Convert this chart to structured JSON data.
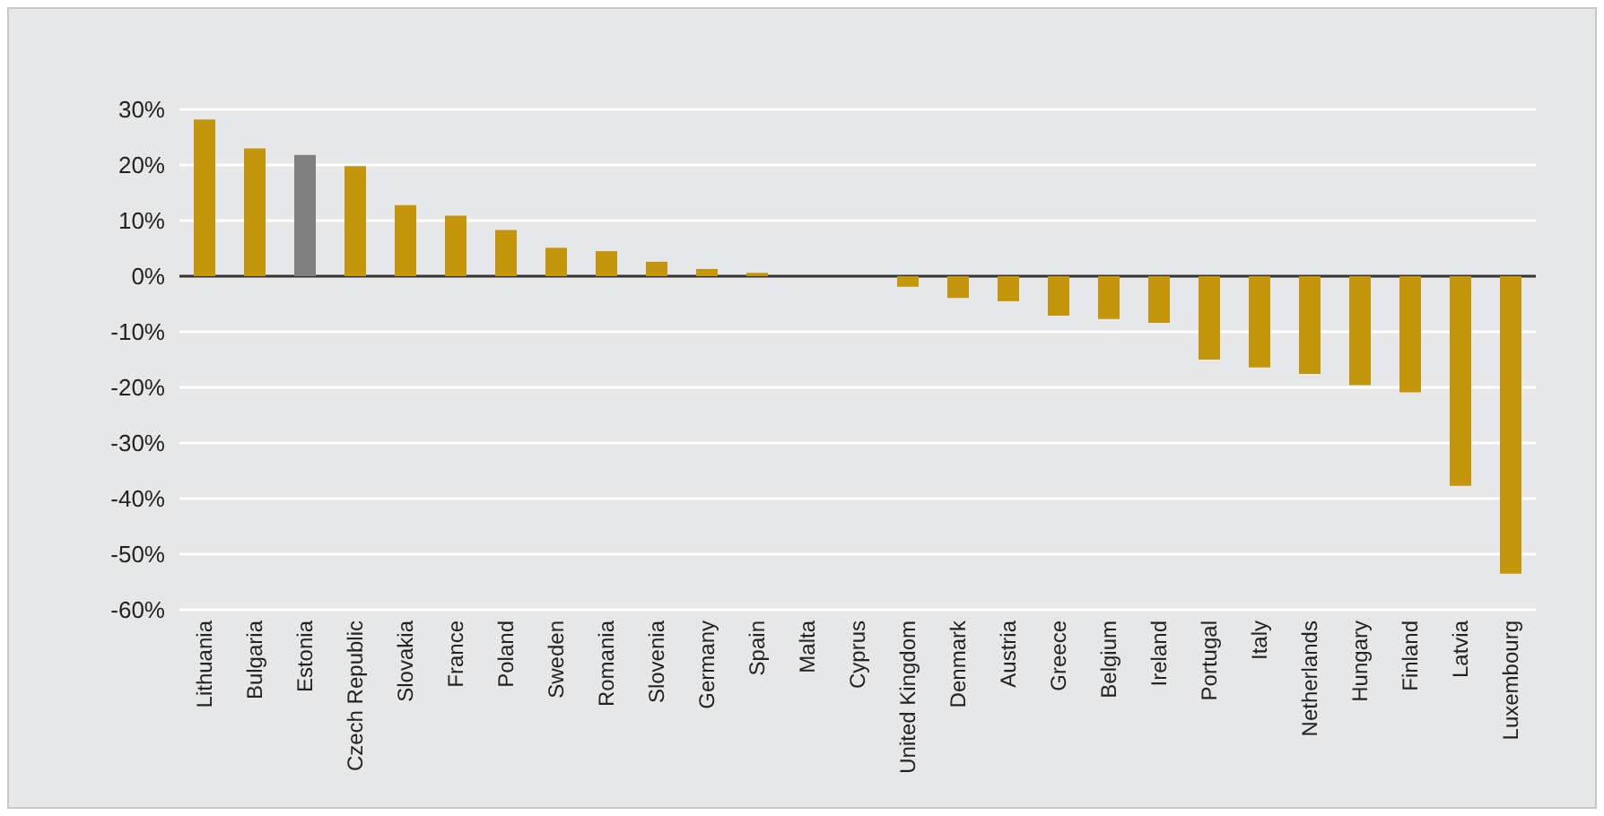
{
  "chart_data": {
    "type": "bar",
    "categories": [
      "Lithuania",
      "Bulgaria",
      "Estonia",
      "Czech Republic",
      "Slovakia",
      "France",
      "Poland",
      "Sweden",
      "Romania",
      "Slovenia",
      "Germany",
      "Spain",
      "Malta",
      "Cyprus",
      "United Kingdom",
      "Denmark",
      "Austria",
      "Greece",
      "Belgium",
      "Ireland",
      "Portugal",
      "Italy",
      "Netherlands",
      "Hungary",
      "Finland",
      "Latvia",
      "Luxembourg"
    ],
    "values": [
      28.2,
      23,
      21.8,
      19.8,
      12.8,
      10.9,
      8.3,
      5.1,
      4.5,
      2.6,
      1.3,
      0.6,
      0,
      0,
      -1.9,
      -3.9,
      -4.5,
      -7.1,
      -7.7,
      -8.4,
      -15,
      -16.4,
      -17.6,
      -19.6,
      -20.9,
      -37.7,
      -53.5
    ],
    "colors": [
      "#c4960c",
      "#c4960c",
      "#808080",
      "#c4960c",
      "#c4960c",
      "#c4960c",
      "#c4960c",
      "#c4960c",
      "#c4960c",
      "#c4960c",
      "#c4960c",
      "#c4960c",
      "#c4960c",
      "#c4960c",
      "#c4960c",
      "#c4960c",
      "#c4960c",
      "#c4960c",
      "#c4960c",
      "#c4960c",
      "#c4960c",
      "#c4960c",
      "#c4960c",
      "#c4960c",
      "#c4960c",
      "#c4960c",
      "#c4960c"
    ],
    "ylim": [
      -60,
      30
    ],
    "yticks": [
      {
        "value": -60,
        "label": "-60%"
      },
      {
        "value": -50,
        "label": "-50%"
      },
      {
        "value": -40,
        "label": "-40%"
      },
      {
        "value": -30,
        "label": "-30%"
      },
      {
        "value": -20,
        "label": "-20%"
      },
      {
        "value": -10,
        "label": "-10%"
      },
      {
        "value": 0,
        "label": "0%"
      },
      {
        "value": 10,
        "label": "10%"
      },
      {
        "value": 20,
        "label": "20%"
      },
      {
        "value": 30,
        "label": "30%"
      }
    ],
    "grid": "y"
  }
}
